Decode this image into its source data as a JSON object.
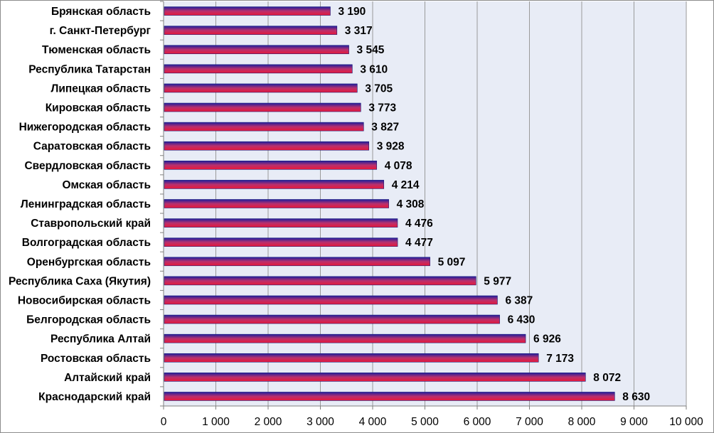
{
  "chart_data": {
    "type": "bar",
    "orientation": "horizontal",
    "title": "",
    "xlabel": "",
    "ylabel": "",
    "xlim": [
      0,
      10000
    ],
    "x_ticks": [
      0,
      1000,
      2000,
      3000,
      4000,
      5000,
      6000,
      7000,
      8000,
      9000,
      10000
    ],
    "x_tick_labels": [
      "0",
      "1 000",
      "2 000",
      "3 000",
      "4 000",
      "5 000",
      "6 000",
      "7 000",
      "8 000",
      "9 000",
      "10 000"
    ],
    "grid": "vertical",
    "legend": "none",
    "colors": {
      "plot_bg": "#e8ecf6",
      "grid": "#9a9a9a",
      "bar_top": "#1f1f9e",
      "bar_mid": "#b8306e",
      "bar_bottom": "#e8183a"
    },
    "categories": [
      "Брянская область",
      "г. Санкт-Петербург",
      "Тюменская область",
      "Республика Татарстан",
      "Липецкая область",
      "Кировская область",
      "Нижегородская область",
      "Саратовская  область",
      "Свердловская область",
      "Омская область",
      "Ленинградская область",
      "Ставропольский край",
      "Волгоградская область",
      "Оренбургская область",
      "Республика Саха  (Якутия)",
      "Новосибирская область",
      "Белгородская область",
      "Республика Алтай",
      "Ростовская  область",
      "Алтайский край",
      "Краснодарский край"
    ],
    "values": [
      3190,
      3317,
      3545,
      3610,
      3705,
      3773,
      3827,
      3928,
      4078,
      4214,
      4308,
      4476,
      4477,
      5097,
      5977,
      6387,
      6430,
      6926,
      7173,
      8072,
      8630
    ],
    "value_labels": [
      "3 190",
      "3 317",
      "3 545",
      "3 610",
      "3 705",
      "3 773",
      "3 827",
      "3 928",
      "4 078",
      "4 214",
      "4 308",
      "4 476",
      "4 477",
      "5 097",
      "5 977",
      "6 387",
      "6 430",
      "6 926",
      "7 173",
      "8 072",
      "8 630"
    ]
  }
}
